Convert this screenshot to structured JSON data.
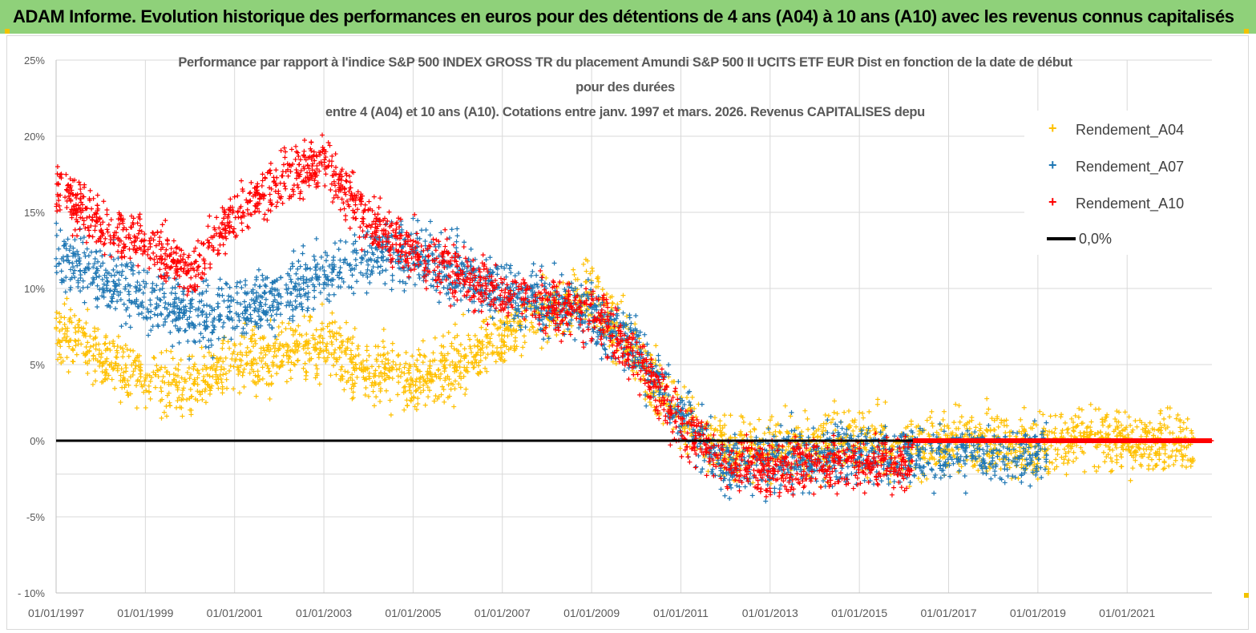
{
  "banner": {
    "title": "ADAM Informe. Evolution historique des performances en euros pour des détentions de 4 ans (A04) à 10 ans (A10) avec les revenus connus capitalisés"
  },
  "chart_data": {
    "type": "scatter",
    "title_lines": [
      "Performance par rapport à l'indice S&P 500 INDEX GROSS TR  du placement Amundi S&P 500 II UCITS ETF EUR Dist en fonction de la date de début",
      "pour des durées",
      "entre 4 (A04) et 10 ans (A10). Cotations entre janv. 1997 et mars. 2026. Revenus CAPITALISES depu"
    ],
    "xlabel": "",
    "ylabel": "",
    "x_range": [
      1997.0,
      2023.0
    ],
    "ylim": [
      -10,
      25
    ],
    "y_ticks": [
      {
        "value": 25,
        "label": "25%"
      },
      {
        "value": 20,
        "label": "20%"
      },
      {
        "value": 15,
        "label": "15%"
      },
      {
        "value": 10,
        "label": "10%"
      },
      {
        "value": 5,
        "label": "5%"
      },
      {
        "value": 0,
        "label": "0%"
      },
      {
        "value": -5,
        "label": "-5%"
      },
      {
        "value": -10,
        "label": "- 10%"
      }
    ],
    "x_ticks": [
      {
        "value": 1997,
        "label": "01/01/1997"
      },
      {
        "value": 1999,
        "label": "01/01/1999"
      },
      {
        "value": 2001,
        "label": "01/01/2001"
      },
      {
        "value": 2003,
        "label": "01/01/2003"
      },
      {
        "value": 2005,
        "label": "01/01/2005"
      },
      {
        "value": 2007,
        "label": "01/01/2007"
      },
      {
        "value": 2009,
        "label": "01/01/2009"
      },
      {
        "value": 2011,
        "label": "01/01/2011"
      },
      {
        "value": 2013,
        "label": "01/01/2013"
      },
      {
        "value": 2015,
        "label": "01/01/2015"
      },
      {
        "value": 2017,
        "label": "01/01/2017"
      },
      {
        "value": 2019,
        "label": "01/01/2019"
      },
      {
        "value": 2021,
        "label": "01/01/2021"
      }
    ],
    "extra_gridline": -2.2,
    "legend_position": "top-right",
    "reference_line": {
      "name": "0,0%",
      "value": 0,
      "color": "#000000"
    },
    "series": [
      {
        "name": "Rendement_A04",
        "color": "#ffc000",
        "x_end": 2022.5,
        "trend": [
          [
            1997.0,
            7.5
          ],
          [
            1998.0,
            5.5
          ],
          [
            1999.0,
            4.0
          ],
          [
            2000.0,
            3.5
          ],
          [
            2001.0,
            5.0
          ],
          [
            2002.0,
            5.5
          ],
          [
            2003.0,
            6.5
          ],
          [
            2004.0,
            4.5
          ],
          [
            2005.0,
            4.0
          ],
          [
            2006.0,
            5.0
          ],
          [
            2007.0,
            7.0
          ],
          [
            2008.0,
            8.5
          ],
          [
            2009.0,
            9.5
          ],
          [
            2010.0,
            5.5
          ],
          [
            2011.0,
            1.5
          ],
          [
            2012.0,
            -0.5
          ],
          [
            2013.0,
            -0.5
          ],
          [
            2014.0,
            -0.5
          ],
          [
            2015.0,
            0.0
          ],
          [
            2016.0,
            -0.5
          ],
          [
            2017.0,
            0.0
          ],
          [
            2018.0,
            0.0
          ],
          [
            2019.0,
            -0.5
          ],
          [
            2020.0,
            0.5
          ],
          [
            2021.0,
            0.0
          ],
          [
            2022.5,
            -0.3
          ]
        ],
        "spread": 1.6
      },
      {
        "name": "Rendement_A07",
        "color": "#1f77b4",
        "x_end": 2019.2,
        "trend": [
          [
            1997.0,
            12.5
          ],
          [
            1998.0,
            10.5
          ],
          [
            1999.0,
            9.5
          ],
          [
            2000.0,
            8.0
          ],
          [
            2001.0,
            8.5
          ],
          [
            2002.0,
            9.5
          ],
          [
            2003.0,
            11.0
          ],
          [
            2004.0,
            12.0
          ],
          [
            2005.0,
            12.5
          ],
          [
            2006.0,
            11.0
          ],
          [
            2007.0,
            10.0
          ],
          [
            2008.0,
            9.0
          ],
          [
            2009.0,
            8.5
          ],
          [
            2010.0,
            6.0
          ],
          [
            2011.0,
            1.5
          ],
          [
            2012.0,
            -1.5
          ],
          [
            2013.0,
            -1.5
          ],
          [
            2014.0,
            -1.0
          ],
          [
            2015.0,
            -1.0
          ],
          [
            2016.0,
            -1.0
          ],
          [
            2017.0,
            -1.0
          ],
          [
            2018.0,
            -1.0
          ],
          [
            2019.2,
            -1.0
          ]
        ],
        "spread": 1.6
      },
      {
        "name": "Rendement_A10",
        "color": "#ff0000",
        "x_end": 2016.2,
        "trend": [
          [
            1997.0,
            16.5
          ],
          [
            1998.0,
            14.0
          ],
          [
            1999.0,
            13.0
          ],
          [
            2000.0,
            11.0
          ],
          [
            2001.0,
            15.0
          ],
          [
            2002.0,
            17.0
          ],
          [
            2003.0,
            18.5
          ],
          [
            2004.0,
            14.5
          ],
          [
            2005.0,
            12.5
          ],
          [
            2006.0,
            11.0
          ],
          [
            2007.0,
            9.5
          ],
          [
            2008.0,
            9.0
          ],
          [
            2009.0,
            8.5
          ],
          [
            2010.0,
            5.5
          ],
          [
            2011.0,
            1.0
          ],
          [
            2012.0,
            -1.5
          ],
          [
            2013.0,
            -2.0
          ],
          [
            2014.0,
            -1.5
          ],
          [
            2015.0,
            -1.5
          ],
          [
            2016.2,
            -1.5
          ]
        ],
        "spread": 1.4,
        "zero_from": 2016.2
      }
    ]
  }
}
